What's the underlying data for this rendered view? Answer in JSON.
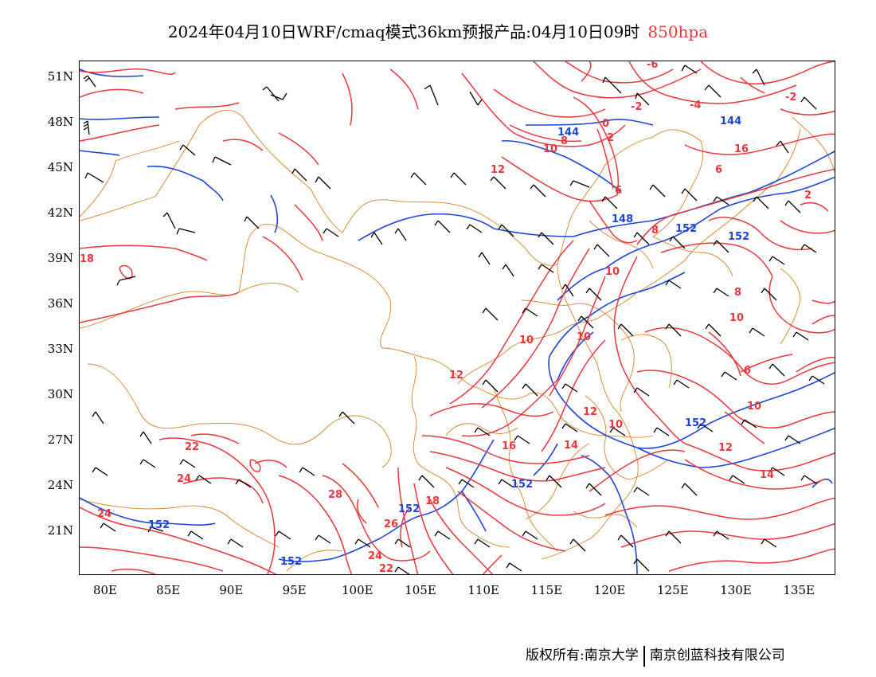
{
  "title": {
    "main": "2024年04月10日WRF/cmaq模式36km预报产品:04月10日09时",
    "level": "850hpa"
  },
  "axes": {
    "lat_ticks": [
      "51N",
      "48N",
      "45N",
      "42N",
      "39N",
      "36N",
      "33N",
      "30N",
      "27N",
      "24N",
      "21N"
    ],
    "lon_ticks": [
      "80E",
      "85E",
      "90E",
      "95E",
      "100E",
      "105E",
      "110E",
      "115E",
      "120E",
      "125E",
      "130E",
      "135E"
    ]
  },
  "map": {
    "extent": {
      "lon_min": 78,
      "lon_max": 138,
      "lat_min": 18,
      "lat_max": 52
    },
    "colors": {
      "temperature_contour": "#e8383d",
      "height_contour": "#1f45d8",
      "boundary": "#d9822b",
      "wind_barb": "#000000"
    },
    "temperature_labels": [
      "-6",
      "-2",
      "-4",
      "-2",
      "0",
      "2",
      "10",
      "8",
      "12",
      "6",
      "16",
      "6",
      "2",
      "8",
      "10",
      "18",
      "8",
      "10",
      "10",
      "10",
      "6",
      "12",
      "10",
      "12",
      "10",
      "14",
      "22",
      "24",
      "24",
      "28",
      "26",
      "24",
      "22",
      "16",
      "12",
      "14",
      "18"
    ],
    "height_labels": [
      "144",
      "144",
      "148",
      "152",
      "152",
      "152",
      "152",
      "152",
      "152",
      "152"
    ]
  },
  "copyright": {
    "left": "版权所有:南京大学",
    "right": "南京创蓝科技有限公司"
  }
}
